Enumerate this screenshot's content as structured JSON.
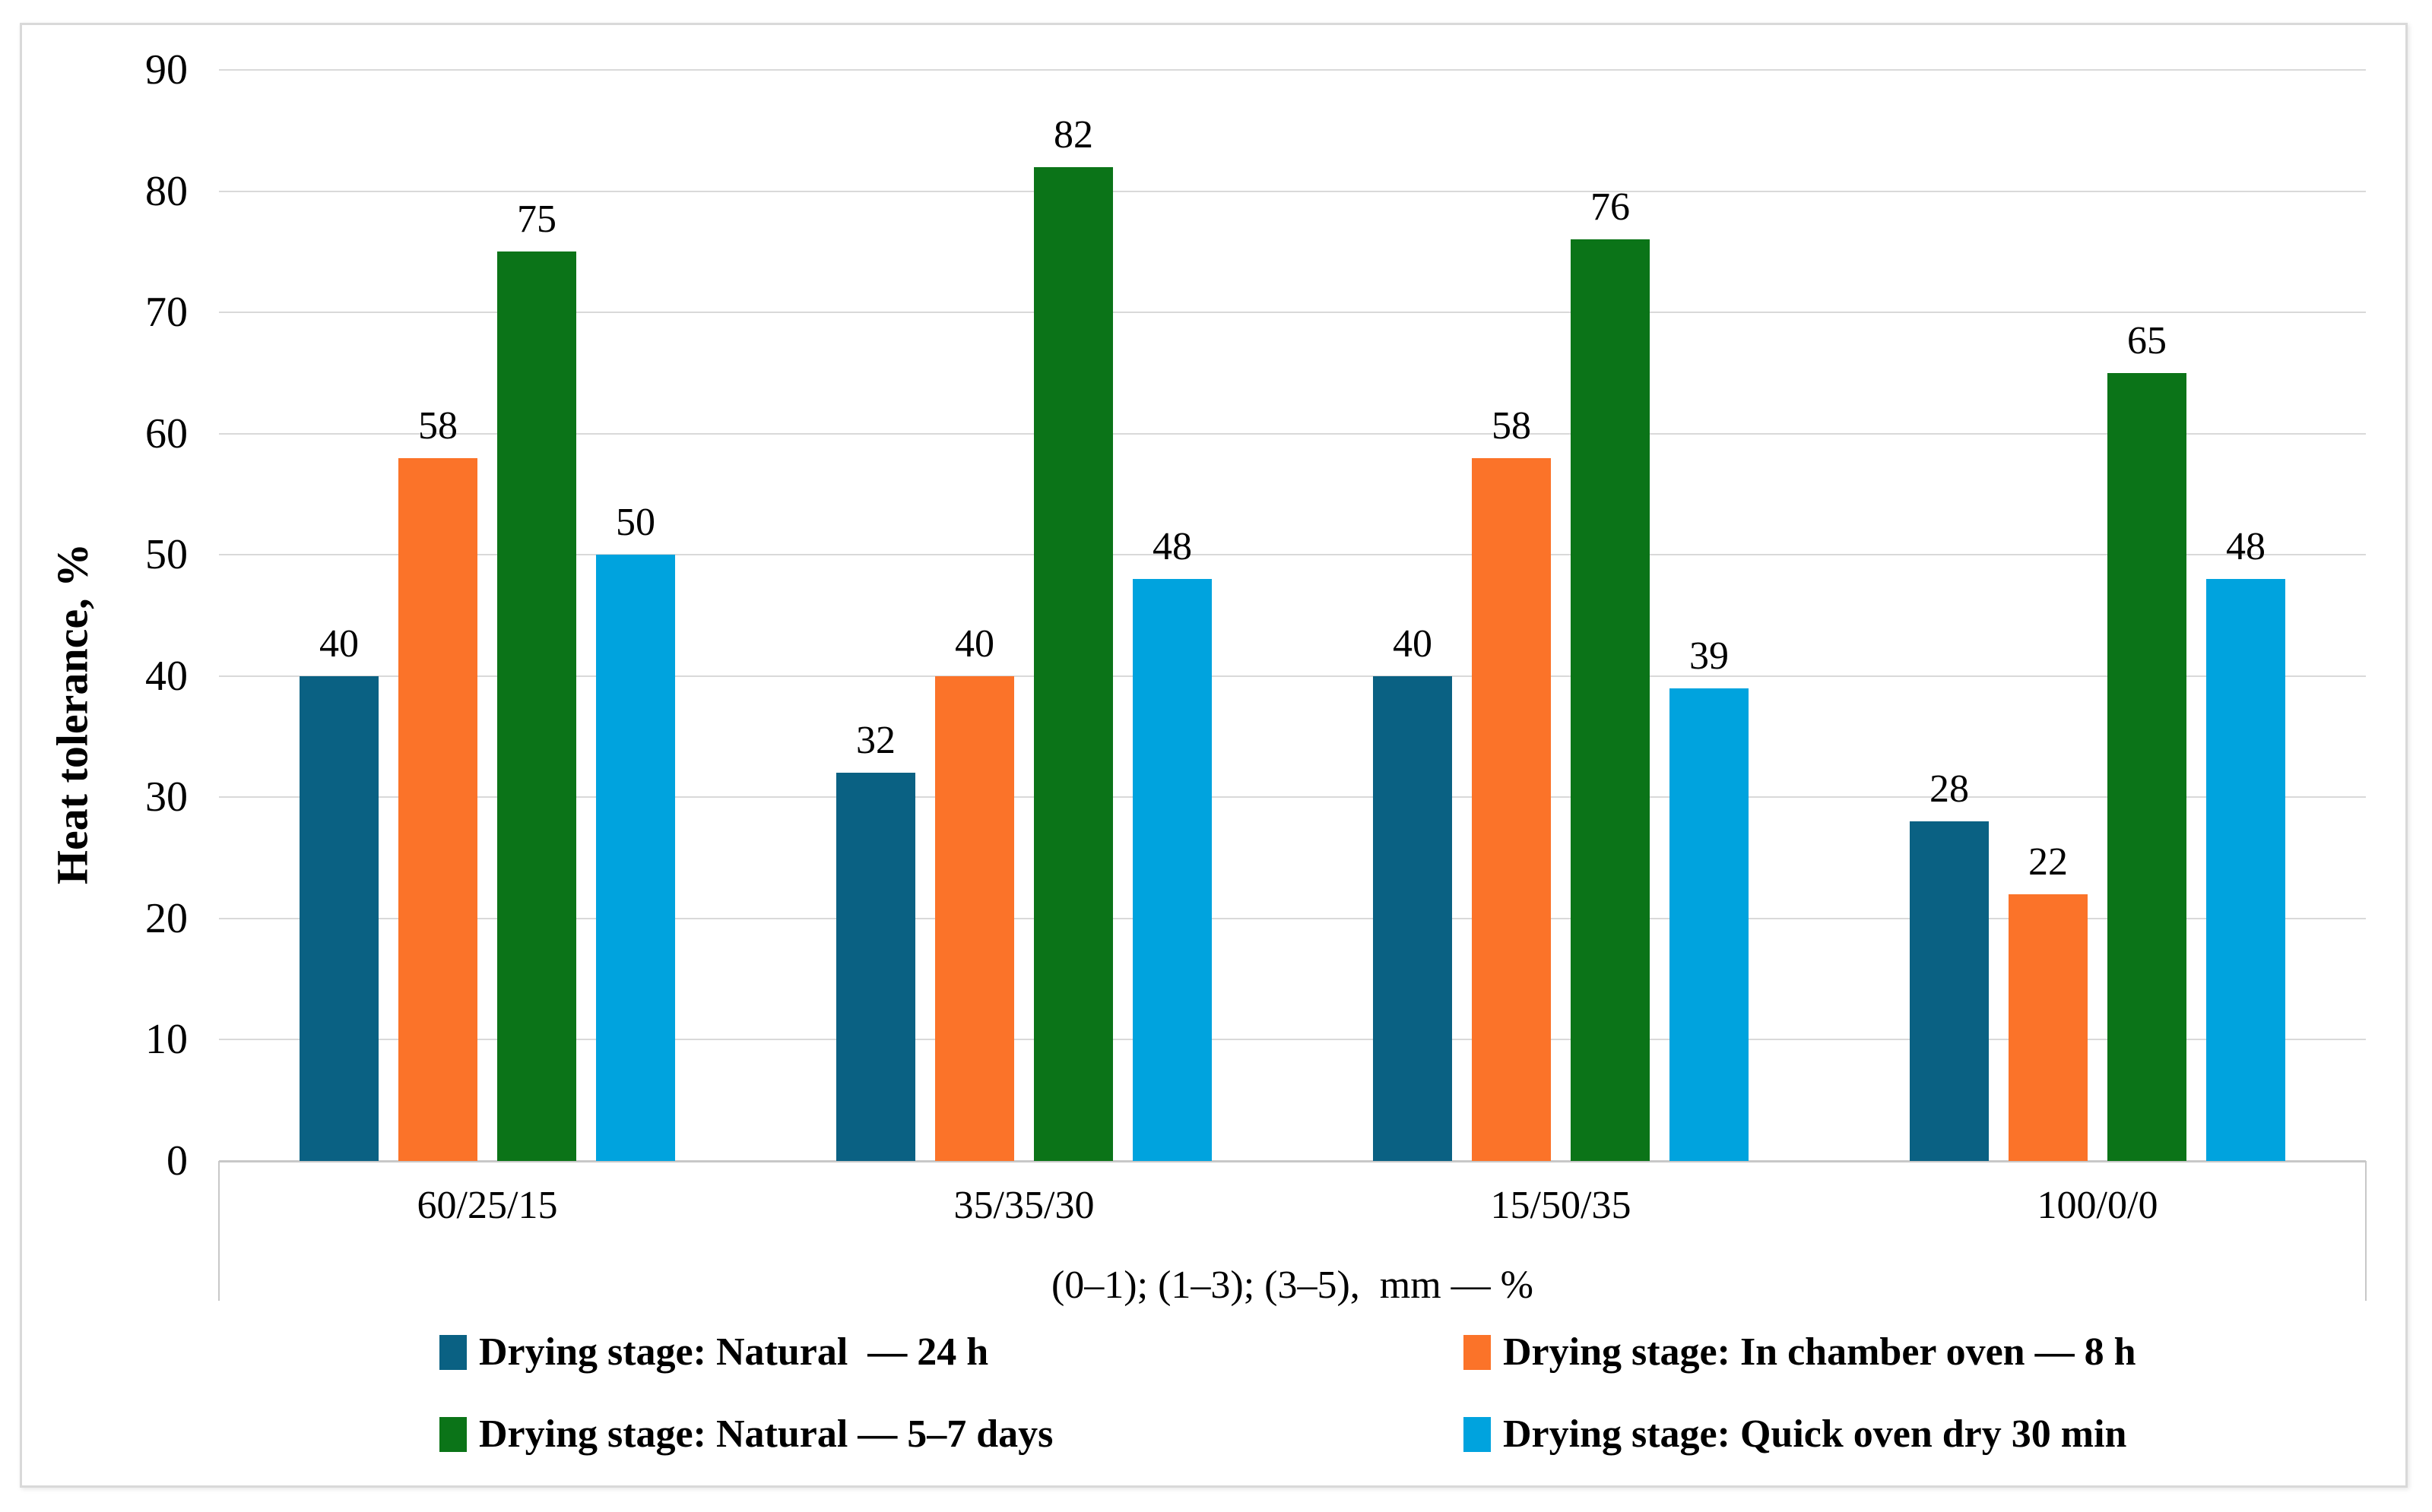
{
  "figure": {
    "background": "#ffffff",
    "border_color": "#D9D9D9"
  },
  "chart_data": {
    "type": "bar",
    "title": "",
    "ylabel": "Heat tolerance, %",
    "xlabel": "(0–1); (1–3); (3–5),  mm — %",
    "ylim": [
      0,
      90
    ],
    "yticks": [
      0,
      10,
      20,
      30,
      40,
      50,
      60,
      70,
      80,
      90
    ],
    "grid": true,
    "data_labels": true,
    "legend_position": "bottom two-column",
    "categories": [
      "60/25/15",
      "35/35/30",
      "15/50/35",
      "100/0/0"
    ],
    "series": [
      {
        "name": "Drying stage: Natural  — 24 h",
        "color": "#0A6183",
        "values": [
          40,
          32,
          40,
          28
        ]
      },
      {
        "name": "Drying stage: In chamber oven — 8 h",
        "color": "#FB7329",
        "values": [
          58,
          40,
          58,
          22
        ]
      },
      {
        "name": "Drying stage: Natural — 5–7 days",
        "color": "#0B7418",
        "values": [
          75,
          82,
          76,
          65
        ]
      },
      {
        "name": "Drying stage: Quick oven dry 30 min",
        "color": "#00A3DE",
        "values": [
          50,
          48,
          39,
          48
        ]
      }
    ],
    "gridline_color": "#D9D9D9"
  }
}
